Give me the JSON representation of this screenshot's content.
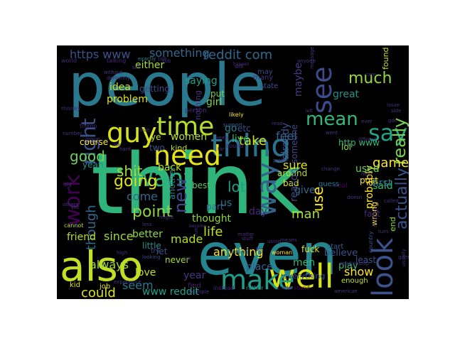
{
  "figure": {
    "background": "#ffffff",
    "panel_color": "#000000"
  },
  "palette": [
    "#440154",
    "#482878",
    "#3e4a89",
    "#31688e",
    "#26828e",
    "#1f9e89",
    "#35b779",
    "#6ece58",
    "#b5de2b",
    "#fde725"
  ],
  "words": [
    {
      "text": "think",
      "color": "#2fb47c"
    },
    {
      "text": "people",
      "color": "#2a788e"
    },
    {
      "text": "even",
      "color": "#25858e"
    },
    {
      "text": "also",
      "color": "#c2df23"
    },
    {
      "text": "look",
      "color": "#3b528b"
    },
    {
      "text": "well",
      "color": "#d8e219"
    },
    {
      "text": "make",
      "color": "#1f9e89"
    },
    {
      "text": "thing",
      "color": "#2c728e"
    },
    {
      "text": "need",
      "color": "#e5e419"
    },
    {
      "text": "time",
      "color": "#b5de2b"
    },
    {
      "text": "guy",
      "color": "#d8e219"
    },
    {
      "text": "see",
      "color": "#3e4a89"
    },
    {
      "text": "say",
      "color": "#20a386"
    },
    {
      "text": "way",
      "color": "#33638d"
    },
    {
      "text": "want",
      "color": "#2db27d"
    },
    {
      "text": "work",
      "color": "#440154"
    },
    {
      "text": "right",
      "color": "#3b528b"
    },
    {
      "text": "mean",
      "color": "#35b779"
    },
    {
      "text": "really",
      "color": "#7ad151"
    },
    {
      "text": "much",
      "color": "#90d743"
    },
    {
      "text": "reddit com",
      "color": "#31688e"
    },
    {
      "text": "https www",
      "color": "#3b528b"
    },
    {
      "text": "something",
      "color": "#31688e"
    },
    {
      "text": "game",
      "color": "#fde725"
    },
    {
      "text": "going",
      "color": "#dde318"
    },
    {
      "text": "good",
      "color": "#6ece58"
    },
    {
      "text": "shit",
      "color": "#a2da37"
    },
    {
      "text": "lot",
      "color": "#1f9e89"
    },
    {
      "text": "point",
      "color": "#8bd646"
    },
    {
      "text": "life",
      "color": "#c0df25"
    },
    {
      "text": "man",
      "color": "#addc30"
    },
    {
      "text": "use",
      "color": "#fde725"
    },
    {
      "text": "actually",
      "color": "#3b528b"
    },
    {
      "text": "though",
      "color": "#31688e"
    },
    {
      "text": "probably",
      "color": "#fde725"
    },
    {
      "text": "new",
      "color": "#3e4a89"
    },
    {
      "text": "seem",
      "color": "#2a788e"
    },
    {
      "text": "could",
      "color": "#dde318"
    },
    {
      "text": "www reddit",
      "color": "#1fa188"
    },
    {
      "text": "women",
      "color": "#b5de2b"
    },
    {
      "text": "take",
      "color": "#d2e21b"
    },
    {
      "text": "feel",
      "color": "#31688e"
    },
    {
      "text": "said",
      "color": "#35b779"
    },
    {
      "text": "used",
      "color": "#6ece58"
    },
    {
      "text": "back",
      "color": "#b5de2b"
    },
    {
      "text": "first",
      "color": "#2a788e"
    },
    {
      "text": "sure",
      "color": "#dde318"
    },
    {
      "text": "come",
      "color": "#31688e"
    },
    {
      "text": "better",
      "color": "#90d743"
    },
    {
      "text": "made",
      "color": "#b5de2b"
    },
    {
      "text": "since",
      "color": "#9bd93c"
    },
    {
      "text": "anything",
      "color": "#fde725"
    },
    {
      "text": "day",
      "color": "#482878"
    },
    {
      "text": "part",
      "color": "#31688e"
    },
    {
      "text": "us",
      "color": "#2a788e"
    },
    {
      "text": "go",
      "color": "#26828e"
    },
    {
      "text": "live",
      "color": "#35b779"
    },
    {
      "text": "show",
      "color": "#fde725"
    },
    {
      "text": "year",
      "color": "#443983"
    },
    {
      "text": "men",
      "color": "#35b779"
    },
    {
      "text": "place",
      "color": "#355f8d"
    },
    {
      "text": "believe",
      "color": "#3b528b"
    },
    {
      "text": "give",
      "color": "#31688e"
    },
    {
      "text": "girl",
      "color": "#7ad151"
    },
    {
      "text": "idea",
      "color": "#c8e020"
    },
    {
      "text": "always",
      "color": "#a0da39"
    },
    {
      "text": "friend",
      "color": "#b8de29"
    },
    {
      "text": "love",
      "color": "#c2df23"
    },
    {
      "text": "problem",
      "color": "#dde318"
    },
    {
      "text": "saying",
      "color": "#1f9e89"
    },
    {
      "text": "either",
      "color": "#a5db36"
    },
    {
      "text": "someone",
      "color": "#3e4a89"
    },
    {
      "text": "already",
      "color": "#3b528b"
    },
    {
      "text": "maybe",
      "color": "#443983"
    },
    {
      "text": "thought",
      "color": "#8bd646"
    },
    {
      "text": "little",
      "color": "#21918c"
    },
    {
      "text": "never",
      "color": "#addc30"
    },
    {
      "text": "http www",
      "color": "#35b779"
    },
    {
      "text": "wrong",
      "color": "#fde725"
    },
    {
      "text": "put",
      "color": "#7ad151"
    },
    {
      "text": "lol",
      "color": "#8bd646"
    },
    {
      "text": "great",
      "color": "#21918c"
    },
    {
      "text": "many",
      "color": "#46327e"
    },
    {
      "text": "post",
      "color": "#fde725"
    },
    {
      "text": "fuck",
      "color": "#dde318"
    },
    {
      "text": "around",
      "color": "#b5de2b"
    },
    {
      "text": "kind",
      "color": "#c2df23"
    },
    {
      "text": "bad",
      "color": "#dde318"
    },
    {
      "text": "best",
      "color": "#5ec962"
    },
    {
      "text": "another",
      "color": "#25858e"
    },
    {
      "text": "course",
      "color": "#fde725"
    },
    {
      "text": "yeah",
      "color": "#21918c"
    },
    {
      "text": "two",
      "color": "#3b528b"
    },
    {
      "text": "fact",
      "color": "#482878"
    },
    {
      "text": "reason",
      "color": "#3e4a89"
    },
    {
      "text": "play",
      "color": "#35b779"
    },
    {
      "text": "end",
      "color": "#90d743"
    },
    {
      "text": "etc",
      "color": "#3b528b"
    },
    {
      "text": "ye",
      "color": "#b5de2b"
    },
    {
      "text": "nothing",
      "color": "#46327e"
    },
    {
      "text": "state",
      "color": "#3b528b"
    },
    {
      "text": "getting",
      "color": "#3e4a89"
    },
    {
      "text": "let",
      "color": "#3e4a89"
    },
    {
      "text": "everything",
      "color": "#3b528b"
    },
    {
      "text": "enough",
      "color": "#c2df23"
    },
    {
      "text": "real",
      "color": "#440154"
    },
    {
      "text": "find",
      "color": "#481f70"
    },
    {
      "text": "guess",
      "color": "#2a788e"
    },
    {
      "text": "kid",
      "color": "#dde318"
    },
    {
      "text": "job",
      "color": "#dde318"
    },
    {
      "text": "least",
      "color": "#3b528b"
    },
    {
      "text": "country",
      "color": "#3b528b"
    },
    {
      "text": "start",
      "color": "#355f8d"
    },
    {
      "text": "money",
      "color": "#482878"
    },
    {
      "text": "trump",
      "color": "#482878"
    },
    {
      "text": "cannot",
      "color": "#b5de2b"
    },
    {
      "text": "sound",
      "color": "#482878"
    },
    {
      "text": "instead",
      "color": "#482878"
    },
    {
      "text": "rather",
      "color": "#21918c"
    },
    {
      "text": "understand",
      "color": "#440154"
    },
    {
      "text": "world",
      "color": "#482878"
    },
    {
      "text": "talking",
      "color": "#482878"
    },
    {
      "text": "exactly",
      "color": "#26828e"
    },
    {
      "text": "try",
      "color": "#3e4a89"
    },
    {
      "text": "looking",
      "color": "#3e4a89"
    },
    {
      "text": "may",
      "color": "#3e4a89"
    },
    {
      "text": "found",
      "color": "#c8e020"
    },
    {
      "text": "fucking",
      "color": "#2a788e"
    },
    {
      "text": "woman",
      "color": "#fde725"
    },
    {
      "text": "likely",
      "color": "#fde725"
    },
    {
      "text": "person",
      "color": "#482878"
    },
    {
      "text": "support",
      "color": "#31688e"
    },
    {
      "text": "true",
      "color": "#46327e"
    },
    {
      "text": "keep",
      "color": "#46327e"
    },
    {
      "text": "far",
      "color": "#46327e"
    },
    {
      "text": "read",
      "color": "#46327e"
    },
    {
      "text": "change",
      "color": "#46327e"
    },
    {
      "text": "help",
      "color": "#46327e"
    },
    {
      "text": "others",
      "color": "#46327e"
    },
    {
      "text": "called",
      "color": "#46327e"
    },
    {
      "text": "making",
      "color": "#46327e"
    },
    {
      "text": "turn",
      "color": "#46327e"
    },
    {
      "text": "set",
      "color": "#46327e"
    },
    {
      "text": "happen",
      "color": "#46327e"
    },
    {
      "text": "anyone",
      "color": "#46327e"
    },
    {
      "text": "care",
      "color": "#46327e"
    },
    {
      "text": "yet",
      "color": "#46327e"
    },
    {
      "text": "less",
      "color": "#46327e"
    },
    {
      "text": "call",
      "color": "#46327e"
    },
    {
      "text": "run",
      "color": "#46327e"
    },
    {
      "text": "matter",
      "color": "#46327e"
    },
    {
      "text": "big",
      "color": "#46327e"
    },
    {
      "text": "went",
      "color": "#46327e"
    },
    {
      "text": "different",
      "color": "#46327e"
    },
    {
      "text": "relationship",
      "color": "#46327e"
    },
    {
      "text": "experience",
      "color": "#46327e"
    },
    {
      "text": "american",
      "color": "#46327e"
    },
    {
      "text": "usually",
      "color": "#46327e"
    },
    {
      "text": "message compose",
      "color": "#46327e"
    },
    {
      "text": "without",
      "color": "#46327e"
    },
    {
      "text": "definitely",
      "color": "#46327e"
    },
    {
      "text": "example",
      "color": "#46327e"
    },
    {
      "text": "become",
      "color": "#46327e"
    },
    {
      "text": "number",
      "color": "#46327e"
    },
    {
      "text": "group",
      "color": "#46327e"
    },
    {
      "text": "ask",
      "color": "#46327e"
    },
    {
      "text": "talk",
      "color": "#46327e"
    },
    {
      "text": "sub",
      "color": "#46327e"
    },
    {
      "text": "side",
      "color": "#46327e"
    },
    {
      "text": "got",
      "color": "#46327e"
    },
    {
      "text": "old",
      "color": "#46327e"
    },
    {
      "text": "high",
      "color": "#46327e"
    },
    {
      "text": "might",
      "color": "#46327e"
    },
    {
      "text": "means",
      "color": "#46327e"
    },
    {
      "text": "using",
      "color": "#46327e"
    },
    {
      "text": "issue",
      "color": "#46327e"
    },
    {
      "text": "left",
      "color": "#46327e"
    },
    {
      "text": "ever",
      "color": "#46327e"
    },
    {
      "text": "stuff",
      "color": "#46327e"
    },
    {
      "text": "doesn",
      "color": "#46327e"
    },
    {
      "text": "game",
      "color": "#46327e"
    },
    {
      "text": "pretty",
      "color": "#46327e"
    },
    {
      "text": "hard",
      "color": "#46327e"
    },
    {
      "text": "still",
      "color": "#46327e"
    },
    {
      "text": "every",
      "color": "#46327e"
    },
    {
      "text": "around",
      "color": "#46327e"
    },
    {
      "text": "team",
      "color": "#46327e"
    },
    {
      "text": "black",
      "color": "#46327e"
    },
    {
      "text": "thank",
      "color": "#46327e"
    },
    {
      "text": "geth",
      "color": "#46327e"
    }
  ]
}
